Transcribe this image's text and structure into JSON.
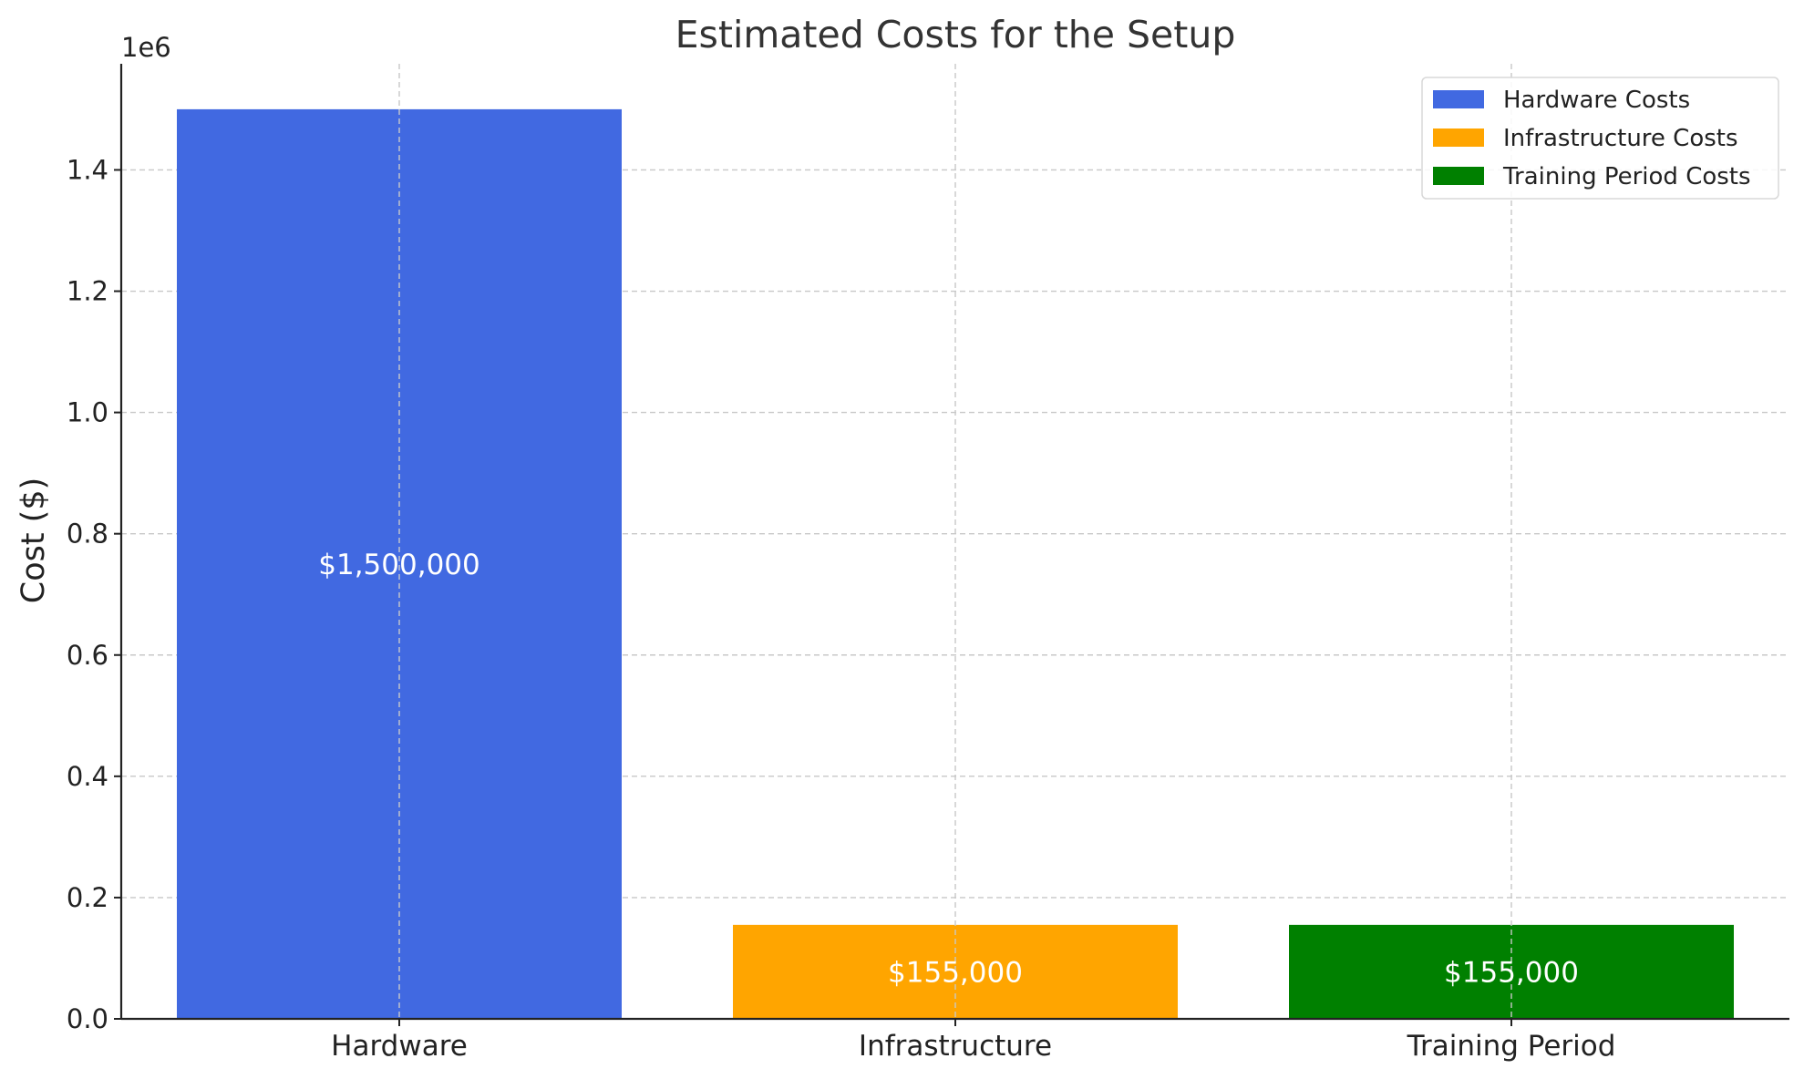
{
  "chart_data": {
    "type": "bar",
    "title": "Estimated Costs for the Setup",
    "xlabel": "",
    "ylabel": "Cost ($)",
    "y_scale_label": "1e6",
    "categories": [
      "Hardware",
      "Infrastructure",
      "Training Period"
    ],
    "values": [
      1500000,
      155000,
      155000
    ],
    "bar_labels": [
      "$1,500,000",
      "$155,000",
      "$155,000"
    ],
    "colors": [
      "#4169e1",
      "#ffa500",
      "#008000"
    ],
    "legend": {
      "placement": "top-right",
      "entries": [
        {
          "name": "Hardware Costs",
          "color": "#4169e1"
        },
        {
          "name": "Infrastructure Costs",
          "color": "#ffa500"
        },
        {
          "name": "Training Period Costs",
          "color": "#008000"
        }
      ]
    },
    "ylim": [
      0,
      1575000
    ],
    "yticks": [
      0,
      200000,
      400000,
      600000,
      800000,
      1000000,
      1200000,
      1400000
    ],
    "ytick_labels": [
      "0.0",
      "0.2",
      "0.4",
      "0.6",
      "0.8",
      "1.0",
      "1.2",
      "1.4"
    ],
    "grid": true
  }
}
